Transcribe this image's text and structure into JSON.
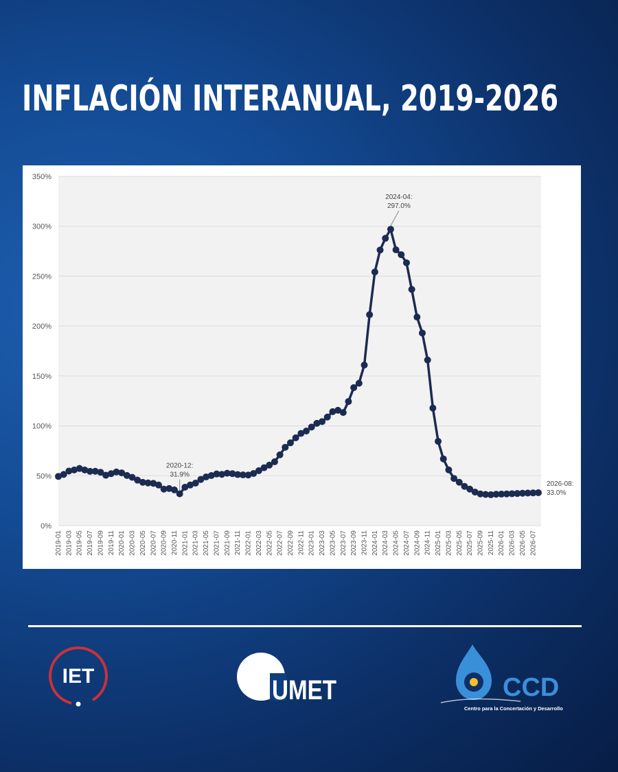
{
  "page": {
    "title": "INFLACIÓN INTERANUAL, 2019-2026"
  },
  "colors": {
    "line": "#1c2b52",
    "plot_bg": "#f2f2f2",
    "grid": "#dcdcdc",
    "axis_text": "#555555",
    "ccd_blue": "#3a8fd9"
  },
  "logos": {
    "iet": "IET",
    "umet": "UMET",
    "ccd": "CCD",
    "ccd_caption": "Centro para la Concertación y Desarrollo"
  },
  "chart_data": {
    "type": "line",
    "title": "",
    "xlabel": "",
    "ylabel": "",
    "ylim": [
      0,
      350
    ],
    "y_ticks": [
      "0%",
      "50%",
      "100%",
      "150%",
      "200%",
      "250%",
      "300%",
      "350%"
    ],
    "grid": true,
    "x_tick_labels": [
      "2019-01",
      "2019-03",
      "2019-05",
      "2019-07",
      "2019-09",
      "2019-11",
      "2020-01",
      "2020-03",
      "2020-05",
      "2020-07",
      "2020-09",
      "2020-11",
      "2021-01",
      "2021-03",
      "2021-05",
      "2021-07",
      "2021-09",
      "2021-11",
      "2022-01",
      "2022-03",
      "2022-05",
      "2022-07",
      "2022-09",
      "2022-11",
      "2023-01",
      "2023-03",
      "2023-05",
      "2023-07",
      "2023-09",
      "2023-11",
      "2024-01",
      "2024-03",
      "2024-05",
      "2024-07",
      "2024-09",
      "2024-11",
      "2025-01",
      "2025-03",
      "2025-05",
      "2025-07",
      "2025-09",
      "2025-11",
      "2026-01",
      "2026-03",
      "2026-05",
      "2026-07"
    ],
    "x": [
      "2019-01",
      "2019-02",
      "2019-03",
      "2019-04",
      "2019-05",
      "2019-06",
      "2019-07",
      "2019-08",
      "2019-09",
      "2019-10",
      "2019-11",
      "2019-12",
      "2020-01",
      "2020-02",
      "2020-03",
      "2020-04",
      "2020-05",
      "2020-06",
      "2020-07",
      "2020-08",
      "2020-09",
      "2020-10",
      "2020-11",
      "2020-12",
      "2021-01",
      "2021-02",
      "2021-03",
      "2021-04",
      "2021-05",
      "2021-06",
      "2021-07",
      "2021-08",
      "2021-09",
      "2021-10",
      "2021-11",
      "2021-12",
      "2022-01",
      "2022-02",
      "2022-03",
      "2022-04",
      "2022-05",
      "2022-06",
      "2022-07",
      "2022-08",
      "2022-09",
      "2022-10",
      "2022-11",
      "2022-12",
      "2023-01",
      "2023-02",
      "2023-03",
      "2023-04",
      "2023-05",
      "2023-06",
      "2023-07",
      "2023-08",
      "2023-09",
      "2023-10",
      "2023-11",
      "2023-12",
      "2024-01",
      "2024-02",
      "2024-03",
      "2024-04",
      "2024-05",
      "2024-06",
      "2024-07",
      "2024-08",
      "2024-09",
      "2024-10",
      "2024-11",
      "2024-12",
      "2025-01",
      "2025-02",
      "2025-03",
      "2025-04",
      "2025-05",
      "2025-06",
      "2025-07",
      "2025-08",
      "2025-09",
      "2025-10",
      "2025-11",
      "2025-12",
      "2026-01",
      "2026-02",
      "2026-03",
      "2026-04",
      "2026-05",
      "2026-06",
      "2026-07",
      "2026-08"
    ],
    "series": [
      {
        "values": [
          49.3,
          51.3,
          54.7,
          55.8,
          57.3,
          55.8,
          54.4,
          54.5,
          53.5,
          50.5,
          52.1,
          53.8,
          52.9,
          50.3,
          48.4,
          45.6,
          43.4,
          42.8,
          42.4,
          40.7,
          36.6,
          37.2,
          35.8,
          31.9,
          38.5,
          40.7,
          42.6,
          46.3,
          48.8,
          50.2,
          51.8,
          51.4,
          52.5,
          52.1,
          51.2,
          50.9,
          50.7,
          52.3,
          55.1,
          58.0,
          60.7,
          64.0,
          71.0,
          78.5,
          83.0,
          88.0,
          92.4,
          94.8,
          98.8,
          102.5,
          104.3,
          108.8,
          114.2,
          115.6,
          113.4,
          124.4,
          138.3,
          142.7,
          160.9,
          211.4,
          254.2,
          276.2,
          287.9,
          297.0,
          276.4,
          271.5,
          263.4,
          236.7,
          209.0,
          193.0,
          166.0,
          117.8,
          84.5,
          66.9,
          55.9,
          47.3,
          43.5,
          39.4,
          36.6,
          33.6,
          31.8,
          31.3,
          31.0,
          31.5,
          31.6,
          31.8,
          32.0,
          32.2,
          32.5,
          32.7,
          32.8,
          33.0
        ]
      }
    ],
    "annotations": [
      {
        "x": "2020-12",
        "label": "2020-12:",
        "value_label": "31.9%"
      },
      {
        "x": "2024-04",
        "label": "2024-04:",
        "value_label": "297.0%"
      },
      {
        "x": "2026-08",
        "label": "2026-08:",
        "value_label": "33.0%"
      }
    ]
  }
}
